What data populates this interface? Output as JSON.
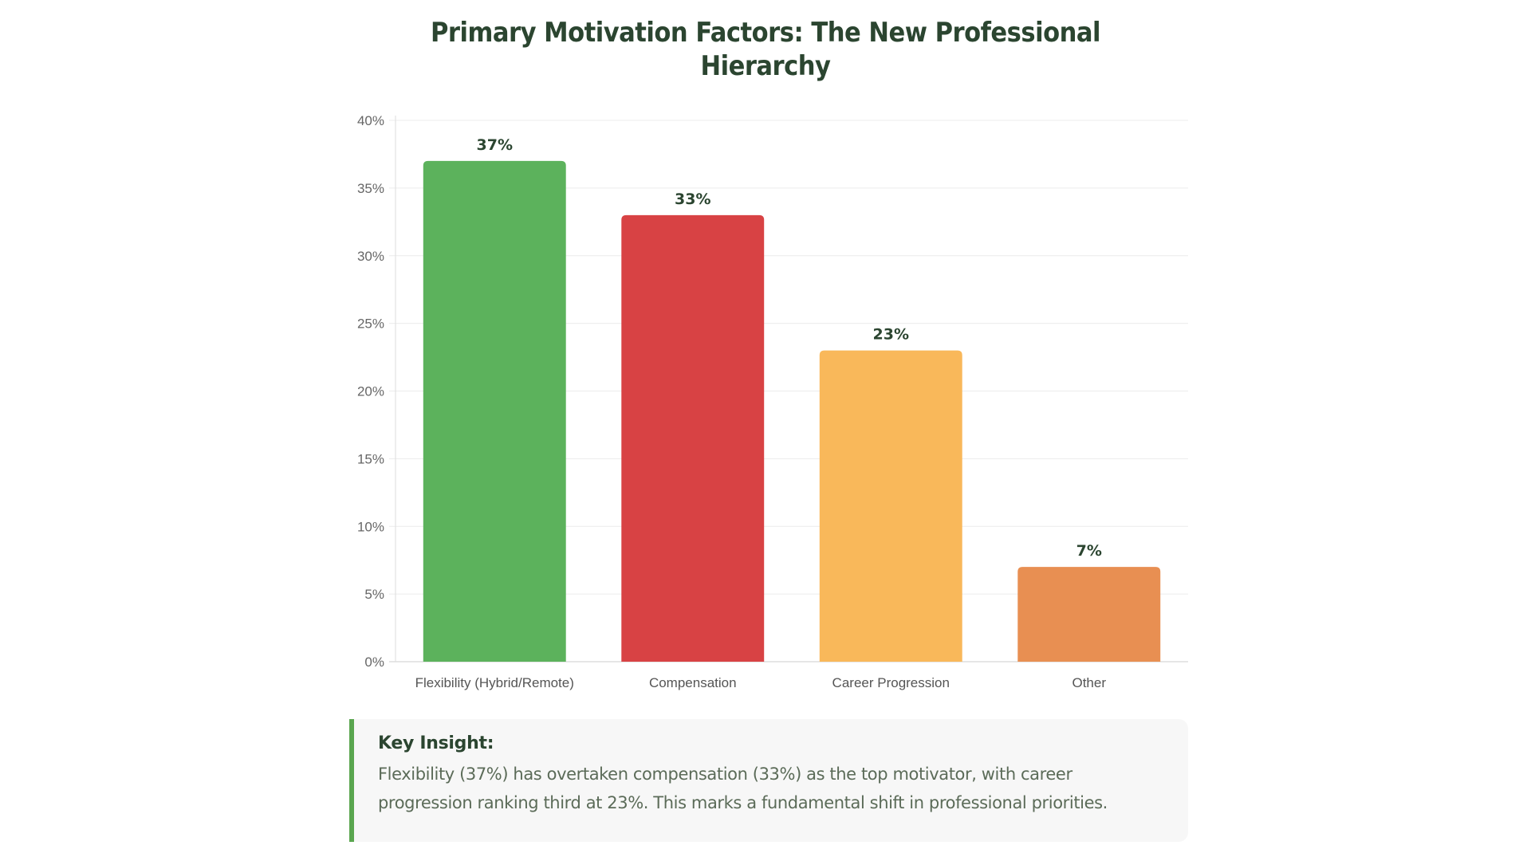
{
  "chart_data": {
    "type": "bar",
    "title": "Primary Motivation Factors: The New Professional Hierarchy",
    "categories": [
      "Flexibility (Hybrid/Remote)",
      "Compensation",
      "Career Progression",
      "Other"
    ],
    "values": [
      37,
      33,
      23,
      7
    ],
    "data_labels": [
      "37%",
      "33%",
      "23%",
      "7%"
    ],
    "colors": [
      "#5cb25c",
      "#d84244",
      "#f9b85a",
      "#e88f52"
    ],
    "xlabel": "",
    "ylabel": "",
    "ylim": [
      0,
      40
    ],
    "yticks": [
      0,
      5,
      10,
      15,
      20,
      25,
      30,
      35,
      40
    ],
    "ytick_labels": [
      "0%",
      "5%",
      "10%",
      "15%",
      "20%",
      "25%",
      "30%",
      "35%",
      "40%"
    ],
    "grid": true,
    "legend": "none"
  },
  "insight": {
    "heading": "Key Insight:",
    "text": "Flexibility (37%) has overtaken compensation (33%) as the top motivator, with career progression ranking third at 23%. This marks a fundamental shift in professional priorities.",
    "accent": "#5aa64f"
  }
}
